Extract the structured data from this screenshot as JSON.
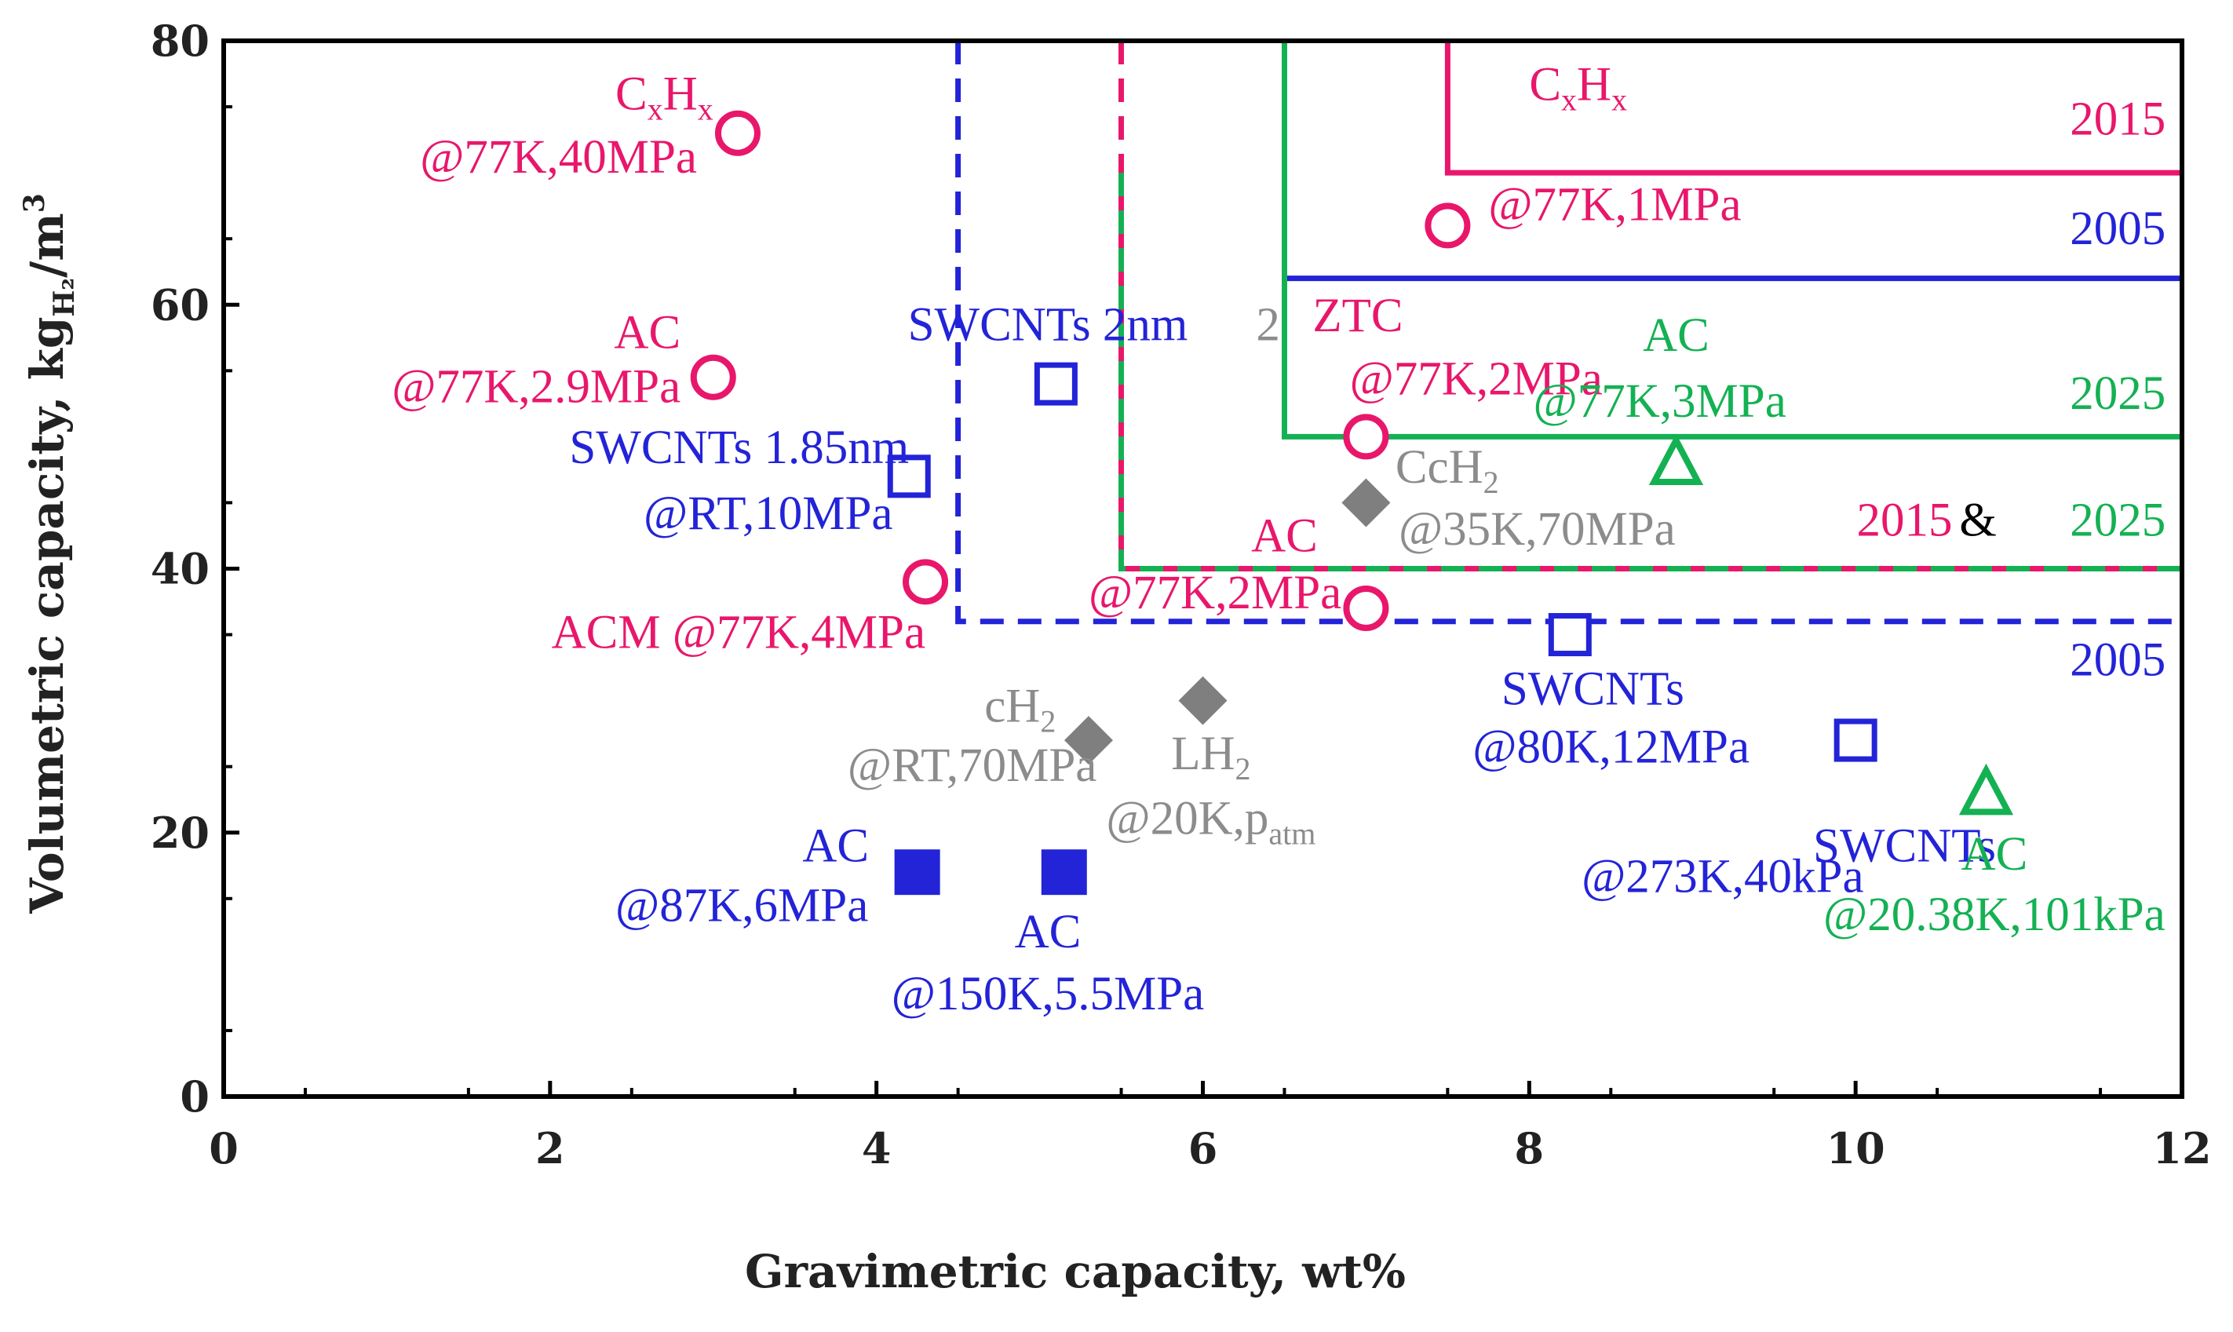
{
  "chart_data": {
    "type": "scatter",
    "xlabel": "Gravimetric capacity,  wt%",
    "ylabel": {
      "main": "Volumetric capacity,  kg",
      "sub": "H₂",
      "unit": "/m",
      "sup": "3"
    },
    "xlim": [
      0,
      12
    ],
    "ylim": [
      0,
      80
    ],
    "xticks": [
      "0",
      "2",
      "4",
      "6",
      "8",
      "10",
      "12"
    ],
    "yticks": [
      "0",
      "20",
      "40",
      "60",
      "80"
    ],
    "colors": {
      "pink": "#e8176b",
      "blue": "#2323d8",
      "green": "#14b153",
      "gray": "#8c8c8c",
      "marker_gray": "#7f7f7f",
      "axis": "#000000"
    },
    "points": [
      {
        "x": 3.15,
        "y": 73,
        "marker": "circle",
        "color": "pink"
      },
      {
        "x": 3.0,
        "y": 54.5,
        "marker": "circle",
        "color": "pink"
      },
      {
        "x": 4.3,
        "y": 39,
        "marker": "circle",
        "color": "pink"
      },
      {
        "x": 7.5,
        "y": 66,
        "marker": "circle",
        "color": "pink"
      },
      {
        "x": 7.0,
        "y": 50,
        "marker": "circle",
        "color": "pink"
      },
      {
        "x": 7.0,
        "y": 37,
        "marker": "circle",
        "color": "pink"
      },
      {
        "x": 5.1,
        "y": 54,
        "marker": "square-open",
        "color": "blue"
      },
      {
        "x": 4.2,
        "y": 47,
        "marker": "square-open",
        "color": "blue"
      },
      {
        "x": 8.25,
        "y": 35,
        "marker": "square-open",
        "color": "blue"
      },
      {
        "x": 10.0,
        "y": 27,
        "marker": "square-open",
        "color": "blue"
      },
      {
        "x": 4.25,
        "y": 17,
        "marker": "square-filled",
        "color": "blue"
      },
      {
        "x": 5.15,
        "y": 17,
        "marker": "square-filled",
        "color": "blue"
      },
      {
        "x": 7.0,
        "y": 45,
        "marker": "diamond",
        "color": "marker_gray"
      },
      {
        "x": 6.0,
        "y": 30,
        "marker": "diamond",
        "color": "marker_gray"
      },
      {
        "x": 5.3,
        "y": 27,
        "marker": "diamond",
        "color": "marker_gray"
      },
      {
        "x": 8.9,
        "y": 48,
        "marker": "triangle",
        "color": "green"
      },
      {
        "x": 10.8,
        "y": 23,
        "marker": "triangle",
        "color": "green"
      }
    ],
    "target_lines": [
      {
        "color": "pink",
        "style": "solid",
        "points": [
          [
            7.5,
            80
          ],
          [
            7.5,
            70
          ],
          [
            12,
            70
          ]
        ]
      },
      {
        "color": "blue",
        "style": "solid",
        "points": [
          [
            6.5,
            70
          ],
          [
            6.5,
            62
          ],
          [
            12,
            62
          ]
        ]
      },
      {
        "color": "green",
        "style": "solid",
        "points": [
          [
            6.5,
            80
          ],
          [
            6.5,
            50
          ],
          [
            12,
            50
          ]
        ]
      },
      {
        "color": "blue",
        "style": "dashed",
        "points": [
          [
            4.5,
            80
          ],
          [
            4.5,
            36
          ],
          [
            12,
            36
          ]
        ]
      },
      {
        "color": "pink",
        "style": "dashed",
        "points": [
          [
            5.5,
            80
          ],
          [
            5.5,
            40
          ],
          [
            12,
            40
          ]
        ]
      },
      {
        "color": "green",
        "style": "dashed",
        "points": [
          [
            5.5,
            70
          ],
          [
            5.5,
            40
          ],
          [
            12,
            40
          ]
        ]
      }
    ],
    "annotations": [
      {
        "x": 3.0,
        "y": 74.8,
        "anchor": "end",
        "color": "pink",
        "parts": [
          [
            "C",
            ""
          ],
          [
            "x",
            "sub"
          ],
          [
            "H",
            ""
          ],
          [
            "x",
            "sub"
          ]
        ]
      },
      {
        "x": 2.9,
        "y": 70.0,
        "anchor": "end",
        "color": "pink",
        "parts": [
          [
            "@77K,40MPa",
            ""
          ]
        ]
      },
      {
        "x": 2.8,
        "y": 56.7,
        "anchor": "end",
        "color": "pink",
        "parts": [
          [
            "AC",
            ""
          ]
        ]
      },
      {
        "x": 2.8,
        "y": 52.6,
        "anchor": "end",
        "color": "pink",
        "parts": [
          [
            "@77K,2.9MPa",
            ""
          ]
        ]
      },
      {
        "x": 4.2,
        "y": 48.0,
        "anchor": "end",
        "color": "blue",
        "parts": [
          [
            "SWCNTs 1.85nm",
            ""
          ]
        ]
      },
      {
        "x": 4.1,
        "y": 43.0,
        "anchor": "end",
        "color": "blue",
        "parts": [
          [
            "@RT,10MPa",
            ""
          ]
        ]
      },
      {
        "x": 4.3,
        "y": 34.0,
        "anchor": "end",
        "color": "pink",
        "parts": [
          [
            "ACM @77K,4MPa",
            ""
          ]
        ]
      },
      {
        "x": 5.05,
        "y": 57.3,
        "anchor": "middle",
        "color": "blue",
        "parts": [
          [
            "SWCNTs 2nm",
            ""
          ]
        ]
      },
      {
        "x": 6.4,
        "y": 57.3,
        "anchor": "middle",
        "color": "gray",
        "parts": [
          [
            "2",
            ""
          ]
        ]
      },
      {
        "x": 8.3,
        "y": 75.5,
        "anchor": "middle",
        "color": "pink",
        "parts": [
          [
            "C",
            ""
          ],
          [
            "x",
            "sub"
          ],
          [
            "H",
            ""
          ],
          [
            "x",
            "sub"
          ]
        ]
      },
      {
        "x": 7.75,
        "y": 66.4,
        "anchor": "start",
        "color": "pink",
        "parts": [
          [
            "@77K,1MPa",
            ""
          ]
        ]
      },
      {
        "x": 11.9,
        "y": 72.9,
        "anchor": "end",
        "color": "pink",
        "parts": [
          [
            "2015",
            ""
          ]
        ]
      },
      {
        "x": 11.9,
        "y": 64.6,
        "anchor": "end",
        "color": "blue",
        "parts": [
          [
            "2005",
            ""
          ]
        ]
      },
      {
        "x": 6.95,
        "y": 58.0,
        "anchor": "middle",
        "color": "pink",
        "parts": [
          [
            "ZTC",
            ""
          ]
        ]
      },
      {
        "x": 6.9,
        "y": 53.2,
        "anchor": "start",
        "color": "pink",
        "parts": [
          [
            "@77K,2MPa",
            ""
          ]
        ]
      },
      {
        "x": 8.9,
        "y": 56.5,
        "anchor": "middle",
        "color": "green",
        "parts": [
          [
            "AC",
            ""
          ]
        ]
      },
      {
        "x": 8.8,
        "y": 51.5,
        "anchor": "middle",
        "color": "green",
        "parts": [
          [
            "@77K,3MPa",
            ""
          ]
        ]
      },
      {
        "x": 11.9,
        "y": 52.1,
        "anchor": "end",
        "color": "green",
        "parts": [
          [
            "2025",
            ""
          ]
        ]
      },
      {
        "x": 7.18,
        "y": 46.5,
        "anchor": "start",
        "color": "gray",
        "parts": [
          [
            "CcH",
            ""
          ],
          [
            "2",
            "sub"
          ]
        ]
      },
      {
        "x": 7.2,
        "y": 41.8,
        "anchor": "start",
        "color": "gray",
        "parts": [
          [
            "@35K,70MPa",
            ""
          ]
        ]
      },
      {
        "x": 10.3,
        "y": 42.5,
        "anchor": "middle",
        "color": "pink",
        "parts": [
          [
            "2015",
            ""
          ]
        ]
      },
      {
        "x": 10.75,
        "y": 42.5,
        "anchor": "middle",
        "color": "axis",
        "parts": [
          [
            "&",
            ""
          ]
        ]
      },
      {
        "x": 11.9,
        "y": 42.5,
        "anchor": "end",
        "color": "green",
        "parts": [
          [
            "2025",
            ""
          ]
        ]
      },
      {
        "x": 6.5,
        "y": 41.3,
        "anchor": "middle",
        "color": "pink",
        "parts": [
          [
            "AC",
            ""
          ]
        ]
      },
      {
        "x": 6.85,
        "y": 37.0,
        "anchor": "end",
        "color": "pink",
        "parts": [
          [
            "@77K,2MPa",
            ""
          ]
        ]
      },
      {
        "x": 11.9,
        "y": 31.9,
        "anchor": "end",
        "color": "blue",
        "parts": [
          [
            "2005",
            ""
          ]
        ]
      },
      {
        "x": 8.95,
        "y": 29.7,
        "anchor": "end",
        "color": "blue",
        "parts": [
          [
            "SWCNTs",
            ""
          ]
        ]
      },
      {
        "x": 9.35,
        "y": 25.3,
        "anchor": "end",
        "color": "blue",
        "parts": [
          [
            "@80K,12MPa",
            ""
          ]
        ]
      },
      {
        "x": 5.1,
        "y": 28.4,
        "anchor": "end",
        "color": "gray",
        "parts": [
          [
            "cH",
            ""
          ],
          [
            "2",
            "sub"
          ]
        ]
      },
      {
        "x": 5.35,
        "y": 23.9,
        "anchor": "end",
        "color": "gray",
        "parts": [
          [
            "@RT,70MPa",
            ""
          ]
        ]
      },
      {
        "x": 6.05,
        "y": 24.8,
        "anchor": "middle",
        "color": "gray",
        "parts": [
          [
            "LH",
            ""
          ],
          [
            "2",
            "sub"
          ]
        ]
      },
      {
        "x": 6.05,
        "y": 19.9,
        "anchor": "middle",
        "color": "gray",
        "parts": [
          [
            "@20K,p",
            ""
          ],
          [
            "atm",
            "sub"
          ]
        ]
      },
      {
        "x": 10.3,
        "y": 17.8,
        "anchor": "middle",
        "color": "blue",
        "parts": [
          [
            "SWCNTs",
            ""
          ]
        ]
      },
      {
        "x": 10.05,
        "y": 17.8,
        "anchor": "end",
        "color": "blue",
        "parts": [
          [
            "",
            ""
          ]
        ]
      },
      {
        "x": 10.05,
        "y": 15.5,
        "anchor": "end",
        "color": "blue",
        "parts": [
          [
            "@273K,40kPa",
            ""
          ]
        ]
      },
      {
        "x": 10.85,
        "y": 17.2,
        "anchor": "middle",
        "color": "green",
        "parts": [
          [
            "AC",
            ""
          ]
        ]
      },
      {
        "x": 10.85,
        "y": 12.6,
        "anchor": "middle",
        "color": "green",
        "parts": [
          [
            "@20.38K,101kPa",
            ""
          ]
        ]
      },
      {
        "x": 3.75,
        "y": 17.8,
        "anchor": "middle",
        "color": "blue",
        "parts": [
          [
            "AC",
            ""
          ]
        ]
      },
      {
        "x": 3.95,
        "y": 13.3,
        "anchor": "end",
        "color": "blue",
        "parts": [
          [
            "@87K,6MPa",
            ""
          ]
        ]
      },
      {
        "x": 5.05,
        "y": 11.3,
        "anchor": "middle",
        "color": "blue",
        "parts": [
          [
            "AC",
            ""
          ]
        ]
      },
      {
        "x": 5.05,
        "y": 6.6,
        "anchor": "middle",
        "color": "blue",
        "parts": [
          [
            "@150K,5.5MPa",
            ""
          ]
        ]
      }
    ]
  }
}
